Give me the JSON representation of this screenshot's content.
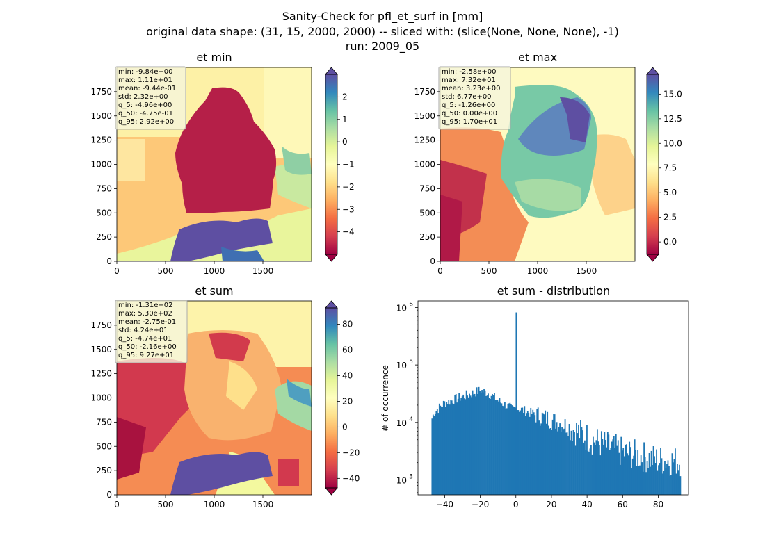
{
  "suptitle": {
    "line1": "Sanity-Check for pfl_et_surf in [mm]",
    "line2": "original data shape: (31, 15, 2000, 2000) -- sliced with: (slice(None, None, None), -1)",
    "line3": "run: 2009_05"
  },
  "colors": {
    "hist_bar": "#1f77b4",
    "stats_box_bg": "#f5f5dc"
  },
  "chart_data": [
    {
      "type": "heatmap",
      "title": "et min",
      "colormap": "Spectral",
      "xlim": [
        0,
        2000
      ],
      "ylim": [
        0,
        2000
      ],
      "xticks": [
        "0",
        "500",
        "1000",
        "1500"
      ],
      "yticks": [
        "0",
        "250",
        "500",
        "750",
        "1000",
        "1250",
        "1500",
        "1750"
      ],
      "colorbar": {
        "min": -5,
        "max": 3,
        "extend": "both",
        "ticks": [
          "2",
          "1",
          "0",
          "−1",
          "−2",
          "−3",
          "−4"
        ],
        "tick_values": [
          2,
          1,
          0,
          -1,
          -2,
          -3,
          -4
        ]
      },
      "stats": [
        "min: -9.84e+00",
        "max: 1.11e+01",
        "mean: -9.44e-01",
        "std: 2.32e+00",
        "q_5: -4.96e+00",
        "q_50: -4.75e-01",
        "q_95: 2.92e+00"
      ]
    },
    {
      "type": "heatmap",
      "title": "et max",
      "colormap": "Spectral",
      "xlim": [
        0,
        2000
      ],
      "ylim": [
        0,
        2000
      ],
      "xticks": [
        "0",
        "500",
        "1000",
        "1500"
      ],
      "yticks": [
        "0",
        "250",
        "500",
        "750",
        "1000",
        "1250",
        "1500",
        "1750"
      ],
      "colorbar": {
        "min": -1.26,
        "max": 17.0,
        "extend": "both",
        "ticks": [
          "15.0",
          "12.5",
          "10.0",
          "7.5",
          "5.0",
          "2.5",
          "0.0"
        ],
        "tick_values": [
          15,
          12.5,
          10,
          7.5,
          5,
          2.5,
          0
        ]
      },
      "stats": [
        "min: -2.58e+00",
        "max: 7.32e+01",
        "mean: 3.23e+00",
        "std: 6.77e+00",
        "q_5: -1.26e+00",
        "q_50: 0.00e+00",
        "q_95: 1.70e+01"
      ]
    },
    {
      "type": "heatmap",
      "title": "et sum",
      "colormap": "Spectral",
      "xlim": [
        0,
        2000
      ],
      "ylim": [
        0,
        2000
      ],
      "xticks": [
        "0",
        "500",
        "1000",
        "1500"
      ],
      "yticks": [
        "0",
        "250",
        "500",
        "750",
        "1000",
        "1250",
        "1500",
        "1750"
      ],
      "colorbar": {
        "min": -47.4,
        "max": 92.7,
        "extend": "both",
        "ticks": [
          "80",
          "60",
          "40",
          "20",
          "0",
          "−20",
          "−40"
        ],
        "tick_values": [
          80,
          60,
          40,
          20,
          0,
          -20,
          -40
        ]
      },
      "stats": [
        "min: -1.31e+02",
        "max: 5.30e+02",
        "mean: -2.75e-01",
        "std: 4.24e+01",
        "q_5: -4.74e+01",
        "q_50: -2.16e+00",
        "q_95: 9.27e+01"
      ]
    },
    {
      "type": "bar",
      "title": "et sum - distribution",
      "ylabel": "# of occurrence",
      "xlabel": "",
      "yscale": "log",
      "xlim": [
        -55,
        97
      ],
      "ylim": [
        550,
        1300000
      ],
      "xticks": [
        "−40",
        "−20",
        "0",
        "20",
        "40",
        "60",
        "80"
      ],
      "xtick_values": [
        -40,
        -20,
        0,
        20,
        40,
        60,
        80
      ],
      "yticks": [
        {
          "base": "10",
          "exp": "3",
          "value": 1000
        },
        {
          "base": "10",
          "exp": "4",
          "value": 10000
        },
        {
          "base": "10",
          "exp": "5",
          "value": 100000
        },
        {
          "base": "10",
          "exp": "6",
          "value": 1000000
        }
      ],
      "bins": {
        "start": -47.4,
        "end": 92.7
      },
      "trend": [
        [
          -47.4,
          11000
        ],
        [
          -46,
          15000
        ],
        [
          -40,
          22000
        ],
        [
          -30,
          28000
        ],
        [
          -20,
          36000
        ],
        [
          -15,
          32000
        ],
        [
          -10,
          24000
        ],
        [
          -2,
          17000
        ],
        [
          0,
          18000
        ],
        [
          10,
          14000
        ],
        [
          20,
          11000
        ],
        [
          30,
          8500
        ],
        [
          40,
          5500
        ],
        [
          50,
          4000
        ],
        [
          60,
          3000
        ],
        [
          70,
          2600
        ],
        [
          80,
          2200
        ],
        [
          92.7,
          2100
        ]
      ],
      "spike": {
        "x": 0,
        "value": 820000
      }
    }
  ]
}
